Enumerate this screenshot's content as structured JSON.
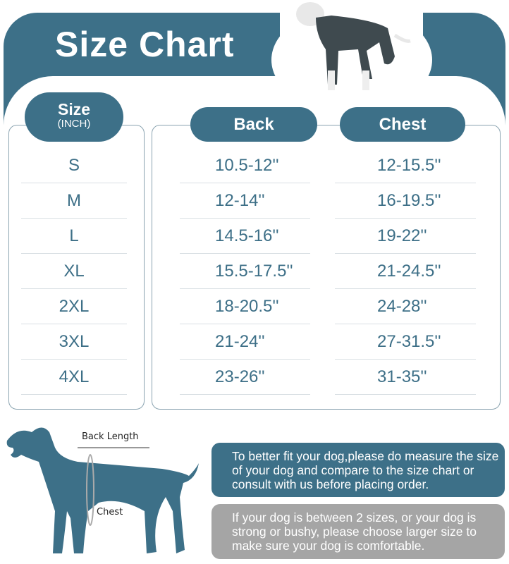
{
  "title": "Size Chart",
  "headers": {
    "size": "Size",
    "unit": "(INCH)",
    "back": "Back",
    "chest": "Chest"
  },
  "rows": [
    {
      "size": "S",
      "back": "10.5-12''",
      "chest": "12-15.5''"
    },
    {
      "size": "M",
      "back": "12-14''",
      "chest": "16-19.5''"
    },
    {
      "size": "L",
      "back": "14.5-16''",
      "chest": "19-22''"
    },
    {
      "size": "XL",
      "back": "15.5-17.5''",
      "chest": "21-24.5''"
    },
    {
      "size": "2XL",
      "back": "18-20.5''",
      "chest": "24-28''"
    },
    {
      "size": "3XL",
      "back": "21-24''",
      "chest": "27-31.5''"
    },
    {
      "size": "4XL",
      "back": "23-26''",
      "chest": "31-35''"
    }
  ],
  "diagram": {
    "back_length": "Back Length",
    "chest": "Chest"
  },
  "notes": [
    "To better fit your dog,please do measure the size of your dog and compare to the size chart or consult with us before placing order.",
    "If your dog is between 2 sizes, or your dog is strong or bushy, please choose larger size to make sure your dog is comfortable."
  ],
  "colors": {
    "accent": "#3d7088",
    "note_gray": "#a5a5a5"
  }
}
